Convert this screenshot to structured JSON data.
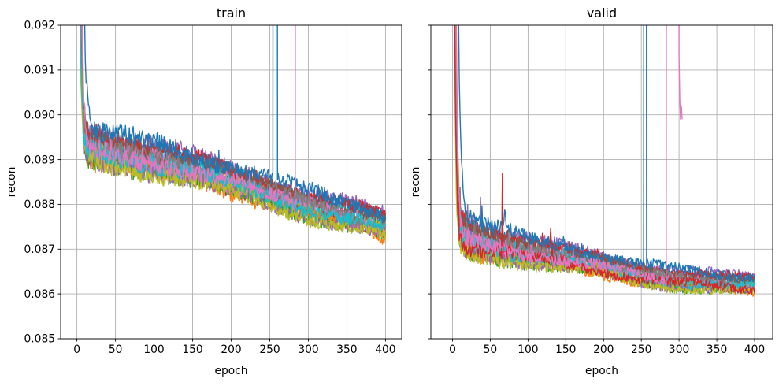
{
  "figure": {
    "background": "#ffffff",
    "grid_color": "#b0b0b0",
    "spine_color": "#000000",
    "text_color": "#000000",
    "line_width": 1.4,
    "seed": 20240,
    "palette": [
      "#1f77b4",
      "#ff7f0e",
      "#2ca02c",
      "#d62728",
      "#9467bd",
      "#8c564b",
      "#e377c2",
      "#7f7f7f",
      "#bcbd22",
      "#17becf"
    ]
  },
  "chart_data": [
    {
      "type": "line",
      "title": "train",
      "xlabel": "epoch",
      "ylabel": "recon",
      "xlim": [
        -21,
        421
      ],
      "ylim": [
        0.085,
        0.092
      ],
      "grid": true,
      "legend": "none",
      "x_ticks": [
        0,
        50,
        100,
        150,
        200,
        250,
        300,
        350,
        400
      ],
      "x_tick_labels": [
        "0",
        "50",
        "100",
        "150",
        "200",
        "250",
        "300",
        "350",
        "400"
      ],
      "y_ticks": [
        0.085,
        0.086,
        0.087,
        0.088,
        0.089,
        0.09,
        0.091,
        0.092
      ],
      "y_tick_labels": [
        "0.085",
        "0.086",
        "0.087",
        "0.088",
        "0.089",
        "0.090",
        "0.091",
        "0.092"
      ],
      "show_y_tick_labels": true,
      "n_runs": 20,
      "epochs": 400,
      "band_keypoints": [
        [
          0,
          0.09
        ],
        [
          8,
          0.08945
        ],
        [
          15,
          0.08928
        ],
        [
          30,
          0.08925
        ],
        [
          60,
          0.08915
        ],
        [
          100,
          0.089
        ],
        [
          140,
          0.08882
        ],
        [
          180,
          0.08862
        ],
        [
          220,
          0.08843
        ],
        [
          260,
          0.08822
        ],
        [
          300,
          0.08798
        ],
        [
          340,
          0.08778
        ],
        [
          370,
          0.08766
        ],
        [
          400,
          0.08748
        ]
      ],
      "band_halfwidth": 0.00036,
      "offset_env": {
        "base": 0.9,
        "gain": 0.3,
        "tau": 150
      },
      "noise": {
        "base": 0.00013,
        "decay_gain": 0.00013,
        "decay_tau": 180
      },
      "spikes": {
        "prob": 0.02,
        "amp": 0.0005,
        "max_epoch": 400,
        "fade": 500
      },
      "transient": {
        "amp_min": 0.012,
        "amp_max": 0.04,
        "tau_min": 1.6,
        "tau_max": 2.8
      },
      "slow_run": {
        "run": 0,
        "amp": 0.05,
        "tau": 3.2
      },
      "wander": 8e-05,
      "anomalies": [
        {
          "run": 0,
          "kind": "blowup",
          "from": 255,
          "to": 259,
          "note": "blue run loss explodes above axis near epoch 255 and returns"
        },
        {
          "run": 6,
          "kind": "blowup",
          "from": 284,
          "to": 304,
          "note": "pink run diverges at epoch ~283"
        },
        {
          "run": 6,
          "kind": "truncate",
          "end": 304
        }
      ]
    },
    {
      "type": "line",
      "title": "valid",
      "xlabel": "epoch",
      "ylabel": "recon",
      "xlim": [
        -28.7,
        424
      ],
      "ylim": [
        0.085,
        0.092
      ],
      "grid": true,
      "legend": "none",
      "x_ticks": [
        0,
        50,
        100,
        150,
        200,
        250,
        300,
        350,
        400
      ],
      "x_tick_labels": [
        "0",
        "50",
        "100",
        "150",
        "200",
        "250",
        "300",
        "350",
        "400"
      ],
      "y_ticks": [
        0.085,
        0.086,
        0.087,
        0.088,
        0.089,
        0.09,
        0.091,
        0.092
      ],
      "y_tick_labels": [
        "0.085",
        "0.086",
        "0.087",
        "0.088",
        "0.089",
        "0.090",
        "0.091",
        "0.092"
      ],
      "show_y_tick_labels": false,
      "n_runs": 20,
      "epochs": 400,
      "band_keypoints": [
        [
          0,
          0.0888
        ],
        [
          4,
          0.0878
        ],
        [
          8,
          0.08745
        ],
        [
          15,
          0.0873
        ],
        [
          30,
          0.0872
        ],
        [
          60,
          0.08708
        ],
        [
          100,
          0.08695
        ],
        [
          140,
          0.08682
        ],
        [
          180,
          0.08668
        ],
        [
          220,
          0.08655
        ],
        [
          260,
          0.08642
        ],
        [
          300,
          0.08632
        ],
        [
          350,
          0.08624
        ],
        [
          400,
          0.08619
        ]
      ],
      "band_halfwidth": 0.00028,
      "offset_env": {
        "base": 0.75,
        "gain": 1.1,
        "tau": 110
      },
      "noise": {
        "base": 9e-05,
        "decay_gain": 0.00012,
        "decay_tau": 140
      },
      "spikes": {
        "prob": 0.05,
        "amp": 0.0009,
        "max_epoch": 220,
        "fade": 260
      },
      "transient": {
        "amp_min": 0.012,
        "amp_max": 0.04,
        "tau_min": 1.4,
        "tau_max": 2.6
      },
      "slow_run": {
        "run": 0,
        "amp": 0.05,
        "tau": 3.2
      },
      "wander": 6e-05,
      "anomalies": [
        {
          "run": 0,
          "kind": "blowup",
          "from": 254,
          "to": 256,
          "note": "blue run loss explodes above axis near epoch 255 and returns"
        },
        {
          "run": 6,
          "kind": "blowup",
          "from": 284,
          "to": 299,
          "note": "pink run diverges at epoch ~283"
        },
        {
          "run": 6,
          "kind": "tail",
          "points": [
            [
              300,
              0.0913
            ],
            [
              301,
              0.0903
            ],
            [
              302,
              0.0899
            ],
            [
              303,
              0.0902
            ],
            [
              304,
              0.0899
            ]
          ],
          "note": "pink run re-enters near epoch 300 around 0.090 then data ends"
        },
        {
          "run": 6,
          "kind": "truncate",
          "end": 304
        },
        {
          "run": 3,
          "kind": "point_spikes",
          "points": [
            [
              66,
              0.0887
            ]
          ],
          "note": "red run spike near epoch 66"
        }
      ]
    }
  ]
}
